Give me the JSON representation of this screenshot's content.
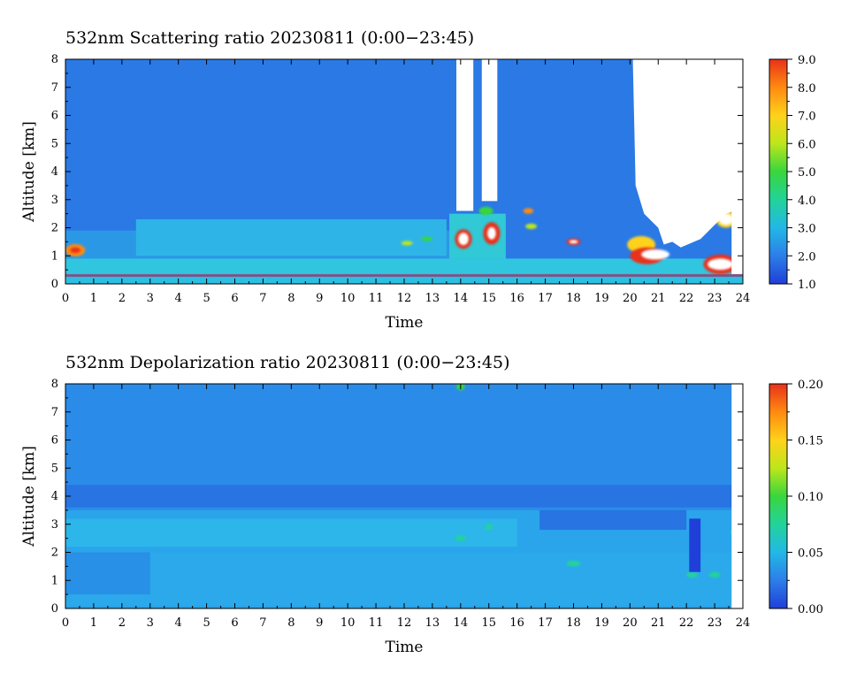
{
  "chart_data": [
    {
      "type": "heatmap",
      "title": "532nm Scattering ratio  20230811 (0:00−23:45)",
      "xlabel": "Time",
      "ylabel": "Altitude [km]",
      "xlim": [
        0,
        24
      ],
      "ylim": [
        0,
        8
      ],
      "x_ticks": [
        0,
        1,
        2,
        3,
        4,
        5,
        6,
        7,
        8,
        9,
        10,
        11,
        12,
        13,
        14,
        15,
        16,
        17,
        18,
        19,
        20,
        21,
        22,
        23,
        24
      ],
      "y_ticks": [
        0,
        1,
        2,
        3,
        4,
        5,
        6,
        7,
        8
      ],
      "colorbar": {
        "min": 1.0,
        "max": 9.0,
        "ticks": [
          "1.0",
          "2.0",
          "3.0",
          "4.0",
          "5.0",
          "6.0",
          "7.0",
          "8.0",
          "9.0"
        ],
        "colors": [
          "#1f3fd8",
          "#2c7ee8",
          "#22b8e6",
          "#22d39a",
          "#39d63d",
          "#bde61b",
          "#ffd21a",
          "#ff8a10",
          "#e8321a"
        ]
      },
      "background_color": "#2a79e5",
      "regions": [
        {
          "kind": "rect",
          "x0": 0,
          "x1": 24,
          "y0": 0,
          "y1": 0.25,
          "color": "#2bc0e3"
        },
        {
          "kind": "rect",
          "x0": 0,
          "x1": 24,
          "y0": 0.27,
          "y1": 0.33,
          "color": "#e8321a"
        },
        {
          "kind": "rect",
          "x0": 0,
          "x1": 14,
          "y0": 0.35,
          "y1": 1.9,
          "color": "#2b98e6"
        },
        {
          "kind": "rect",
          "x0": 2.5,
          "x1": 13.5,
          "y0": 1.0,
          "y1": 2.3,
          "color": "#2fb4e8"
        },
        {
          "kind": "rect",
          "x0": 0,
          "x1": 24,
          "y0": 0.35,
          "y1": 0.9,
          "color": "#31c6df"
        },
        {
          "kind": "rect",
          "x0": 13.6,
          "x1": 15.6,
          "y0": 0.9,
          "y1": 2.5,
          "color": "#30c9d5"
        },
        {
          "kind": "blob",
          "x": 0.35,
          "y": 1.2,
          "rx": 0.35,
          "ry": 0.22,
          "color": "#ff8a10"
        },
        {
          "kind": "blob",
          "x": 0.35,
          "y": 1.2,
          "rx": 0.18,
          "ry": 0.1,
          "color": "#e8321a"
        },
        {
          "kind": "blob",
          "x": 14.1,
          "y": 1.6,
          "rx": 0.3,
          "ry": 0.35,
          "color": "#e8321a"
        },
        {
          "kind": "blob",
          "x": 14.1,
          "y": 1.6,
          "rx": 0.18,
          "ry": 0.22,
          "color": "#ffffff"
        },
        {
          "kind": "blob",
          "x": 15.1,
          "y": 1.8,
          "rx": 0.3,
          "ry": 0.4,
          "color": "#e8321a"
        },
        {
          "kind": "blob",
          "x": 15.1,
          "y": 1.8,
          "rx": 0.15,
          "ry": 0.22,
          "color": "#ffffff"
        },
        {
          "kind": "blob",
          "x": 14.9,
          "y": 2.6,
          "rx": 0.25,
          "ry": 0.15,
          "color": "#39d63d"
        },
        {
          "kind": "blob",
          "x": 12.1,
          "y": 1.45,
          "rx": 0.2,
          "ry": 0.08,
          "color": "#bde61b"
        },
        {
          "kind": "blob",
          "x": 12.8,
          "y": 1.6,
          "rx": 0.2,
          "ry": 0.08,
          "color": "#39d63d"
        },
        {
          "kind": "blob",
          "x": 16.4,
          "y": 2.6,
          "rx": 0.18,
          "ry": 0.1,
          "color": "#ff8a10"
        },
        {
          "kind": "blob",
          "x": 16.5,
          "y": 2.05,
          "rx": 0.2,
          "ry": 0.1,
          "color": "#bde61b"
        },
        {
          "kind": "blob",
          "x": 18.0,
          "y": 1.5,
          "rx": 0.25,
          "ry": 0.12,
          "color": "#e8321a"
        },
        {
          "kind": "blob",
          "x": 18.0,
          "y": 1.5,
          "rx": 0.15,
          "ry": 0.06,
          "color": "#ffffff"
        },
        {
          "kind": "blob",
          "x": 20.4,
          "y": 1.4,
          "rx": 0.5,
          "ry": 0.3,
          "color": "#ffd21a"
        },
        {
          "kind": "blob",
          "x": 20.6,
          "y": 1.0,
          "rx": 0.6,
          "ry": 0.3,
          "color": "#e8321a"
        },
        {
          "kind": "blob",
          "x": 20.9,
          "y": 1.05,
          "rx": 0.5,
          "ry": 0.18,
          "color": "#ffffff"
        },
        {
          "kind": "blob",
          "x": 23.2,
          "y": 0.7,
          "rx": 0.6,
          "ry": 0.35,
          "color": "#e8321a"
        },
        {
          "kind": "blob",
          "x": 23.2,
          "y": 0.7,
          "rx": 0.45,
          "ry": 0.2,
          "color": "#ffffff"
        },
        {
          "kind": "blob",
          "x": 21.8,
          "y": 2.3,
          "rx": 0.3,
          "ry": 0.18,
          "color": "#e8321a"
        },
        {
          "kind": "blob",
          "x": 21.8,
          "y": 2.3,
          "rx": 0.18,
          "ry": 0.08,
          "color": "#ffffff"
        },
        {
          "kind": "blob",
          "x": 23.4,
          "y": 2.3,
          "rx": 0.35,
          "ry": 0.3,
          "color": "#ffd21a"
        },
        {
          "kind": "blob",
          "x": 23.4,
          "y": 2.3,
          "rx": 0.25,
          "ry": 0.2,
          "color": "#ffffff"
        },
        {
          "kind": "rect",
          "x0": 13.85,
          "x1": 14.45,
          "y0": 2.6,
          "y1": 8,
          "color": "#ffffff"
        },
        {
          "kind": "rect",
          "x0": 14.75,
          "x1": 15.3,
          "y0": 2.95,
          "y1": 8,
          "color": "#ffffff"
        },
        {
          "kind": "poly",
          "points": [
            [
              20.1,
              8
            ],
            [
              24,
              8
            ],
            [
              24,
              2.7
            ],
            [
              23.4,
              2.5
            ],
            [
              22.5,
              1.6
            ],
            [
              21.8,
              1.3
            ],
            [
              21.5,
              1.5
            ],
            [
              21.2,
              1.4
            ],
            [
              21.0,
              2.0
            ],
            [
              20.5,
              2.5
            ],
            [
              20.2,
              3.5
            ],
            [
              20.1,
              8
            ]
          ],
          "color": "#ffffff"
        },
        {
          "kind": "rect",
          "x0": 23.6,
          "x1": 24,
          "y0": 0.35,
          "y1": 8,
          "color": "#ffffff"
        }
      ]
    },
    {
      "type": "heatmap",
      "title": "532nm Depolarization ratio  20230811 (0:00−23:45)",
      "xlabel": "Time",
      "ylabel": "Altitude [km]",
      "xlim": [
        0,
        24
      ],
      "ylim": [
        0,
        8
      ],
      "x_ticks": [
        0,
        1,
        2,
        3,
        4,
        5,
        6,
        7,
        8,
        9,
        10,
        11,
        12,
        13,
        14,
        15,
        16,
        17,
        18,
        19,
        20,
        21,
        22,
        23,
        24
      ],
      "y_ticks": [
        0,
        1,
        2,
        3,
        4,
        5,
        6,
        7,
        8
      ],
      "colorbar": {
        "min": 0.0,
        "max": 0.2,
        "ticks": [
          "0.00",
          "0.05",
          "0.10",
          "0.15",
          "0.20"
        ],
        "colors": [
          "#1f3fd8",
          "#2c7ee8",
          "#22b8e6",
          "#22d39a",
          "#39d63d",
          "#bde61b",
          "#ffd21a",
          "#ff8a10",
          "#e8321a"
        ]
      },
      "background_color": "#2a8ce8",
      "regions": [
        {
          "kind": "rect",
          "x0": 0,
          "x1": 24,
          "y0": 3.6,
          "y1": 4.4,
          "color": "#2774e2"
        },
        {
          "kind": "rect",
          "x0": 0,
          "x1": 24,
          "y0": 0,
          "y1": 3.5,
          "color": "#2aa4ea"
        },
        {
          "kind": "rect",
          "x0": 0,
          "x1": 16,
          "y0": 2.2,
          "y1": 3.2,
          "color": "#2db6ea"
        },
        {
          "kind": "rect",
          "x0": 0,
          "x1": 24,
          "y0": 0.1,
          "y1": 2.0,
          "color": "#2ba9ea"
        },
        {
          "kind": "rect",
          "x0": 0,
          "x1": 3,
          "y0": 0.5,
          "y1": 2.0,
          "color": "#2890e6"
        },
        {
          "kind": "rect",
          "x0": 16.8,
          "x1": 22,
          "y0": 2.8,
          "y1": 3.5,
          "color": "#2774e2"
        },
        {
          "kind": "blob",
          "x": 14.0,
          "y": 7.9,
          "rx": 0.15,
          "ry": 0.12,
          "color": "#39d63d"
        },
        {
          "kind": "blob",
          "x": 14.0,
          "y": 2.5,
          "rx": 0.2,
          "ry": 0.1,
          "color": "#22d39a"
        },
        {
          "kind": "blob",
          "x": 15.0,
          "y": 2.9,
          "rx": 0.15,
          "ry": 0.1,
          "color": "#22d39a"
        },
        {
          "kind": "blob",
          "x": 18.0,
          "y": 1.6,
          "rx": 0.25,
          "ry": 0.1,
          "color": "#22d39a"
        },
        {
          "kind": "blob",
          "x": 22.3,
          "y": 2.2,
          "rx": 0.15,
          "ry": 0.07,
          "color": "#39d63d"
        },
        {
          "kind": "blob",
          "x": 22.2,
          "y": 1.2,
          "rx": 0.2,
          "ry": 0.1,
          "color": "#22d39a"
        },
        {
          "kind": "blob",
          "x": 23.0,
          "y": 1.2,
          "rx": 0.2,
          "ry": 0.1,
          "color": "#22d39a"
        },
        {
          "kind": "blob",
          "x": 23.7,
          "y": 2.7,
          "rx": 0.15,
          "ry": 0.08,
          "color": "#22d39a"
        },
        {
          "kind": "rect",
          "x0": 22.1,
          "x1": 22.5,
          "y0": 1.3,
          "y1": 3.2,
          "color": "#1f3fd8"
        },
        {
          "kind": "rect",
          "x0": 23.6,
          "x1": 24,
          "y0": 0,
          "y1": 8,
          "color": "#ffffff"
        }
      ]
    }
  ]
}
